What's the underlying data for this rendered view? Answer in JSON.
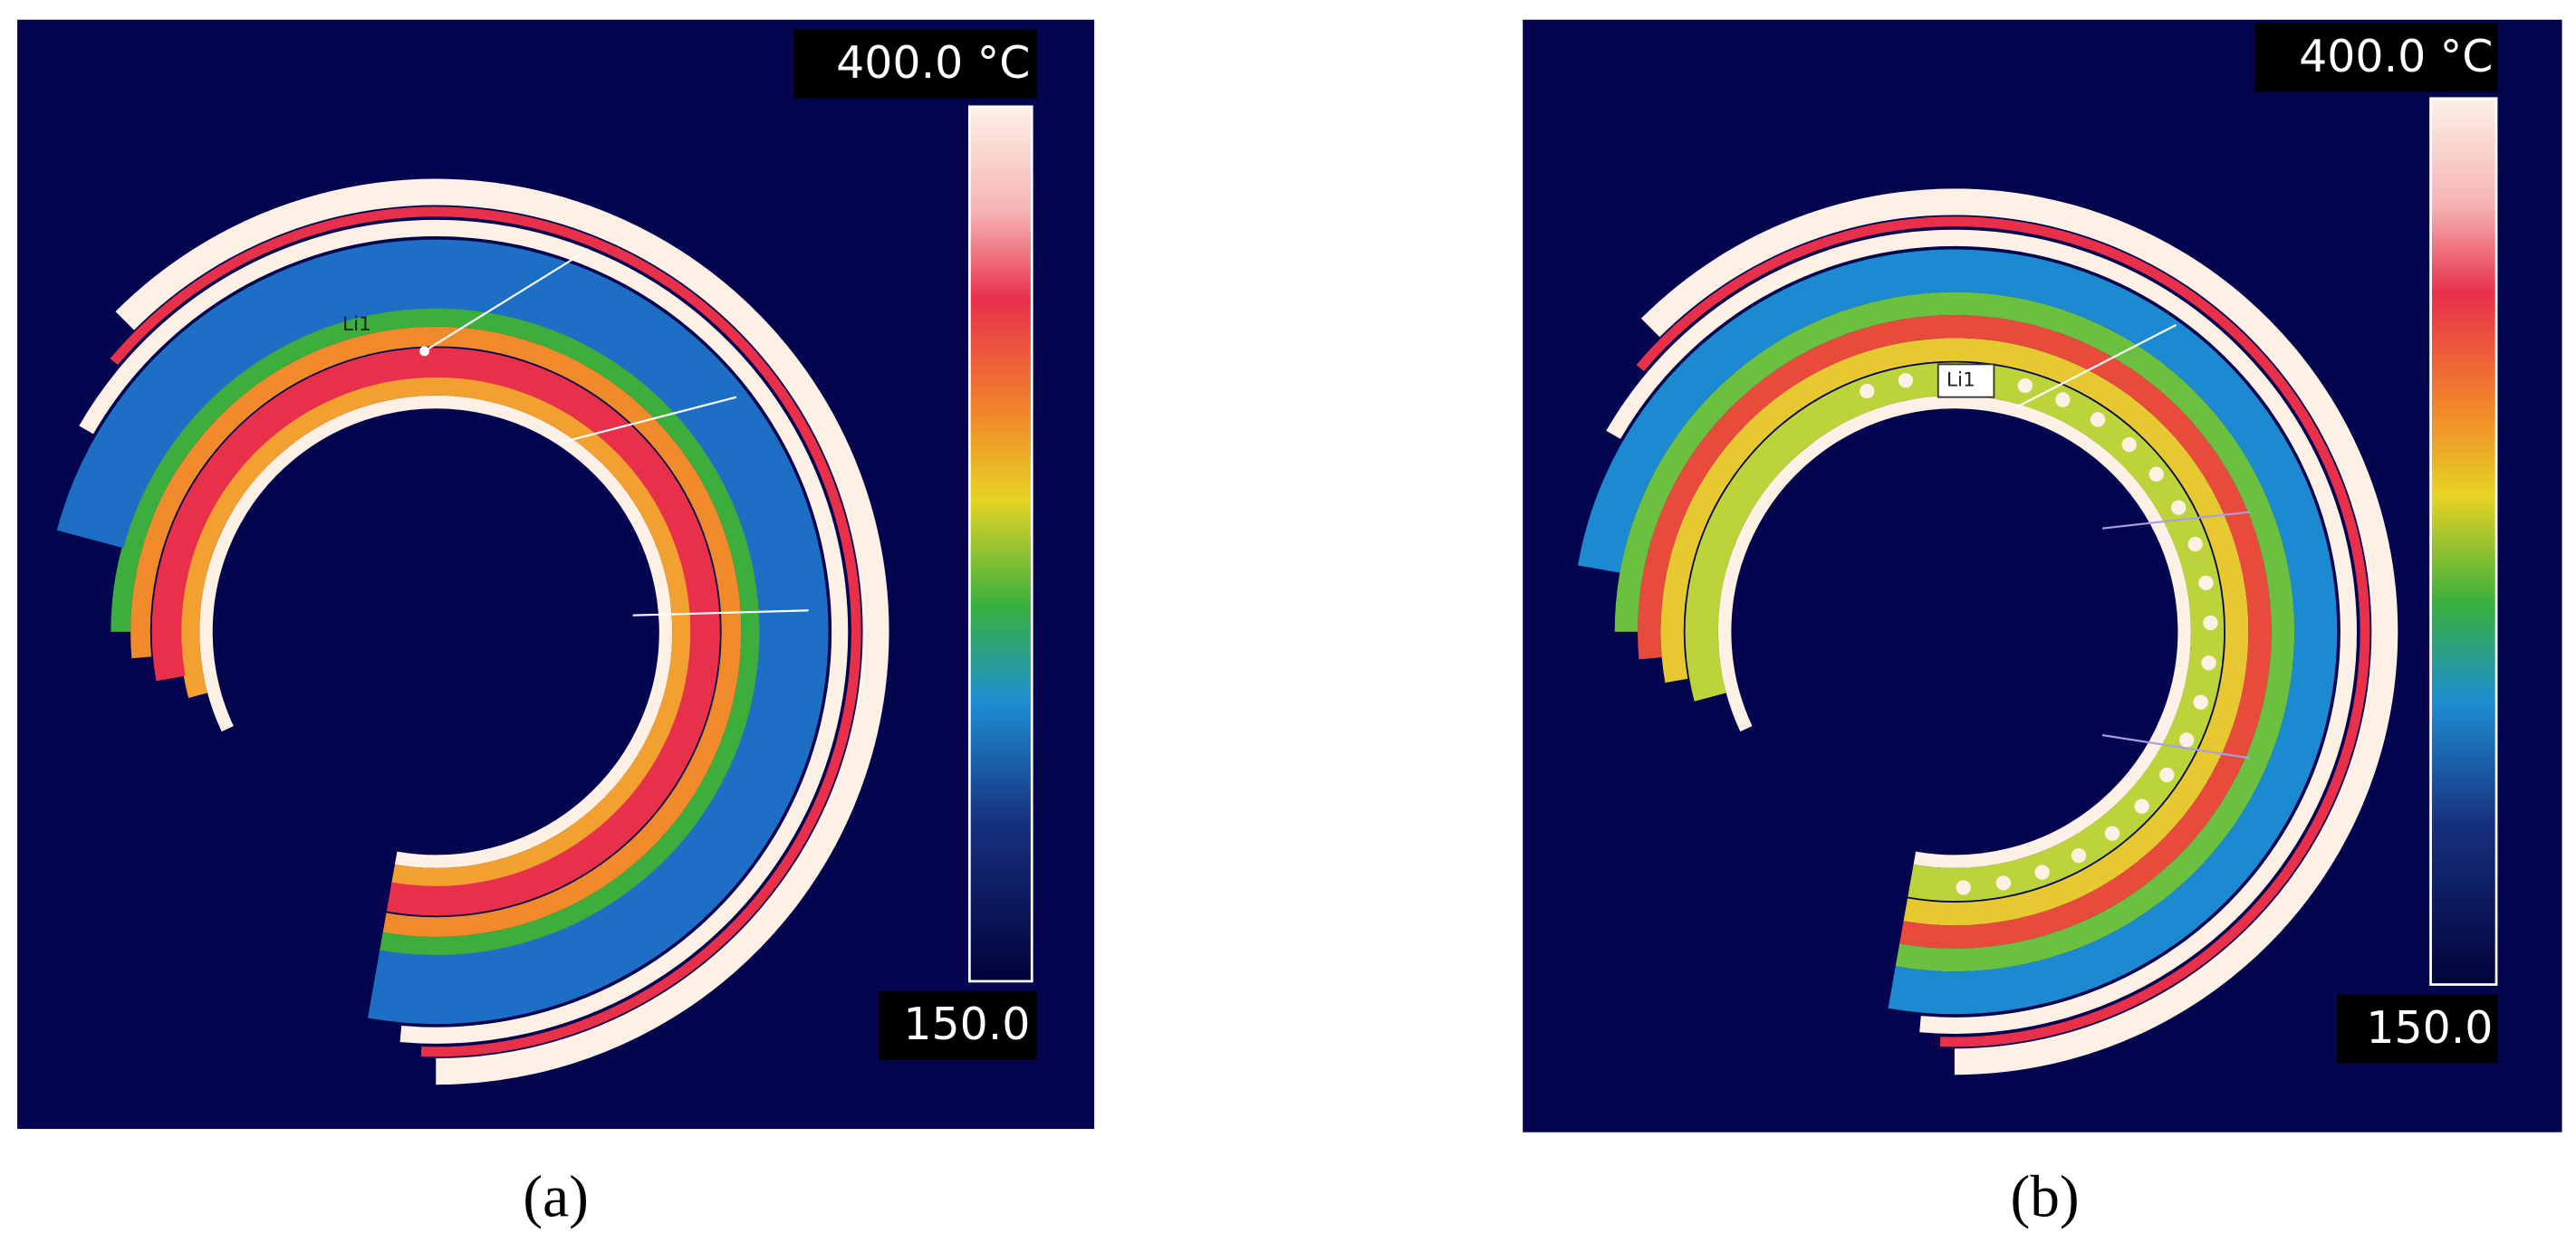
{
  "panels": [
    {
      "scale_max": "400.0 °C",
      "scale_min": "150.0",
      "line_label": "Li1",
      "caption": "(a)"
    },
    {
      "scale_max": "400.0 °C",
      "scale_min": "150.0",
      "line_label": "Li1",
      "caption": "(b)"
    }
  ]
}
